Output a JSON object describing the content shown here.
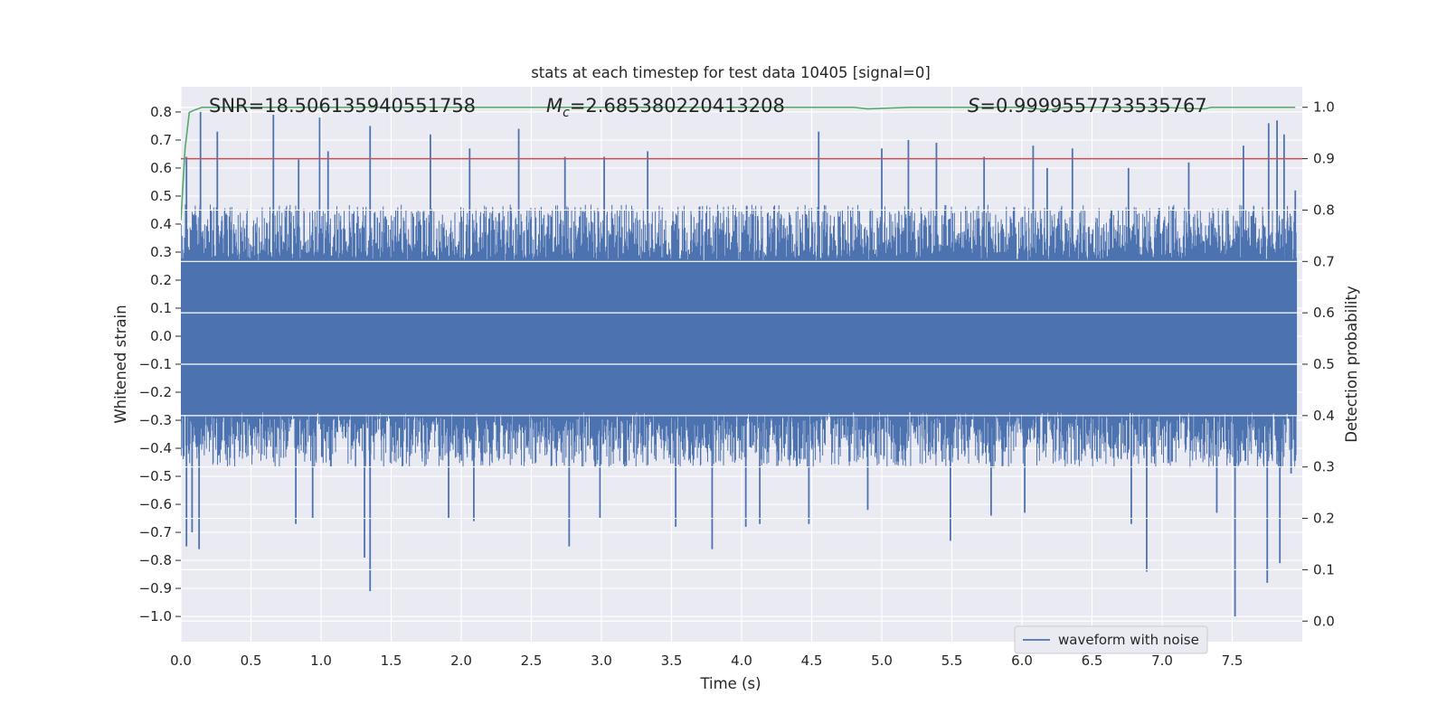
{
  "chart_data": {
    "type": "line",
    "title": "stats at each timestep for test data 10405 [signal=0]",
    "xlabel": "Time (s)",
    "ylabel": "Whitened strain",
    "y2label": "Detection probability",
    "xlim": [
      0.0,
      8.0
    ],
    "ylim": [
      -1.09,
      0.89
    ],
    "y2lim": [
      -0.04,
      1.04
    ],
    "xticks": [
      0.0,
      0.5,
      1.0,
      1.5,
      2.0,
      2.5,
      3.0,
      3.5,
      4.0,
      4.5,
      5.0,
      5.5,
      6.0,
      6.5,
      7.0,
      7.5
    ],
    "xtick_labels": [
      "0.0",
      "0.5",
      "1.0",
      "1.5",
      "2.0",
      "2.5",
      "3.0",
      "3.5",
      "4.0",
      "4.5",
      "5.0",
      "5.5",
      "6.0",
      "6.5",
      "7.0",
      "7.5"
    ],
    "yticks": [
      0.8,
      0.7,
      0.6,
      0.5,
      0.4,
      0.3,
      0.2,
      0.1,
      0.0,
      -0.1,
      -0.2,
      -0.3,
      -0.4,
      -0.5,
      -0.6,
      -0.7,
      -0.8,
      -0.9,
      -1.0
    ],
    "ytick_labels": [
      "0.8",
      "0.7",
      "0.6",
      "0.5",
      "0.4",
      "0.3",
      "0.2",
      "0.1",
      "0.0",
      "−0.1",
      "−0.2",
      "−0.3",
      "−0.4",
      "−0.5",
      "−0.6",
      "−0.7",
      "−0.8",
      "−0.9",
      "−1.0"
    ],
    "y2ticks": [
      1.0,
      0.9,
      0.8,
      0.7,
      0.6,
      0.5,
      0.4,
      0.3,
      0.2,
      0.1,
      0.0
    ],
    "y2tick_labels": [
      "1.0",
      "0.9",
      "0.8",
      "0.7",
      "0.6",
      "0.5",
      "0.4",
      "0.3",
      "0.2",
      "0.1",
      "0.0"
    ],
    "grid": true,
    "legend": {
      "location": "lower-right",
      "entries": [
        "waveform with noise"
      ]
    },
    "annotations": {
      "snr": "SNR=18.506135940551758",
      "mc_symbol": "M",
      "mc_subscript": "c",
      "mc_value": "=2.685380220413208",
      "s_symbol": "S",
      "s_value": "=0.9999557733535767"
    },
    "series": [
      {
        "name": "waveform with noise",
        "axis": "left",
        "color": "#4c72b0",
        "style": "dense noisy strain, core band about ±0.25 with spikes",
        "spikes_up": [
          [
            0.04,
            0.64
          ],
          [
            0.14,
            0.8
          ],
          [
            0.26,
            0.73
          ],
          [
            0.66,
            0.79
          ],
          [
            0.84,
            0.63
          ],
          [
            0.99,
            0.78
          ],
          [
            1.05,
            0.66
          ],
          [
            1.35,
            0.75
          ],
          [
            1.78,
            0.72
          ],
          [
            2.06,
            0.67
          ],
          [
            2.41,
            0.74
          ],
          [
            2.74,
            0.64
          ],
          [
            3.02,
            0.64
          ],
          [
            3.33,
            0.66
          ],
          [
            4.55,
            0.73
          ],
          [
            5.0,
            0.67
          ],
          [
            5.19,
            0.7
          ],
          [
            5.39,
            0.69
          ],
          [
            5.73,
            0.64
          ],
          [
            6.08,
            0.68
          ],
          [
            6.18,
            0.6
          ],
          [
            6.36,
            0.67
          ],
          [
            6.76,
            0.6
          ],
          [
            7.19,
            0.62
          ],
          [
            7.58,
            0.68
          ],
          [
            7.76,
            0.76
          ],
          [
            7.82,
            0.77
          ],
          [
            7.87,
            0.72
          ],
          [
            7.95,
            0.52
          ]
        ],
        "spikes_down": [
          [
            0.04,
            -0.75
          ],
          [
            0.08,
            -0.7
          ],
          [
            0.13,
            -0.76
          ],
          [
            0.82,
            -0.67
          ],
          [
            0.94,
            -0.65
          ],
          [
            1.31,
            -0.79
          ],
          [
            1.35,
            -0.91
          ],
          [
            1.91,
            -0.65
          ],
          [
            2.09,
            -0.66
          ],
          [
            2.77,
            -0.75
          ],
          [
            2.99,
            -0.65
          ],
          [
            3.53,
            -0.68
          ],
          [
            3.79,
            -0.76
          ],
          [
            4.03,
            -0.68
          ],
          [
            4.13,
            -0.67
          ],
          [
            4.48,
            -0.67
          ],
          [
            4.9,
            -0.62
          ],
          [
            5.49,
            -0.73
          ],
          [
            5.78,
            -0.64
          ],
          [
            6.02,
            -0.63
          ],
          [
            6.78,
            -0.67
          ],
          [
            6.89,
            -0.84
          ],
          [
            7.39,
            -0.63
          ],
          [
            7.52,
            -1.0
          ],
          [
            7.75,
            -0.88
          ],
          [
            7.84,
            -0.81
          ],
          [
            7.92,
            -0.49
          ]
        ]
      },
      {
        "name": "",
        "axis": "right",
        "color": "#c44e52",
        "x": [
          0.0,
          8.0
        ],
        "y": [
          0.9,
          0.9
        ]
      },
      {
        "name": "",
        "axis": "right",
        "color": "#55a868",
        "x": [
          0.0,
          0.03,
          0.06,
          0.1,
          0.15,
          0.3,
          1.0,
          2.0,
          3.0,
          4.0,
          4.8,
          4.9,
          5.2,
          6.0,
          6.15,
          6.2,
          6.3,
          7.0,
          7.3,
          7.35,
          7.95
        ],
        "y": [
          0.78,
          0.92,
          0.99,
          0.995,
          1.0,
          1.0,
          1.0,
          1.0,
          1.0,
          1.0,
          1.0,
          0.997,
          1.0,
          1.0,
          0.996,
          0.995,
          1.0,
          1.0,
          0.997,
          1.0,
          1.0
        ]
      }
    ]
  },
  "colors": {
    "background": "#eaeaf2",
    "grid": "#ffffff",
    "waveform": "#4c72b0",
    "threshold": "#c44e52",
    "probability": "#55a868",
    "text": "#262626"
  }
}
